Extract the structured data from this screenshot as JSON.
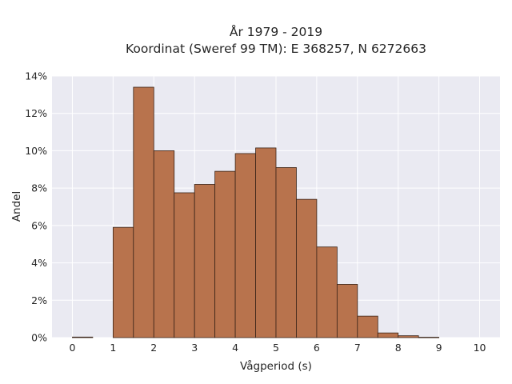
{
  "chart_data": {
    "type": "bar",
    "title_line1": "År 1979 - 2019",
    "title_line2": "Koordinat (Sweref 99 TM): E 368257, N 6272663",
    "xlabel": "Vågperiod (s)",
    "ylabel": "Andel",
    "xlim": [
      -0.5,
      10.5
    ],
    "ylim": [
      0,
      14
    ],
    "x_ticks": [
      0,
      1,
      2,
      3,
      4,
      5,
      6,
      7,
      8,
      9,
      10
    ],
    "y_ticks": [
      0,
      2,
      4,
      6,
      8,
      10,
      12,
      14
    ],
    "y_tick_labels": [
      "0%",
      "2%",
      "4%",
      "6%",
      "8%",
      "10%",
      "12%",
      "14%"
    ],
    "bin_width": 0.5,
    "bins": [
      {
        "x0": 0.0,
        "value": 0.03
      },
      {
        "x0": 0.5,
        "value": 0.0
      },
      {
        "x0": 1.0,
        "value": 5.9
      },
      {
        "x0": 1.5,
        "value": 13.4
      },
      {
        "x0": 2.0,
        "value": 10.0
      },
      {
        "x0": 2.5,
        "value": 7.75
      },
      {
        "x0": 3.0,
        "value": 8.2
      },
      {
        "x0": 3.5,
        "value": 8.9
      },
      {
        "x0": 4.0,
        "value": 9.85
      },
      {
        "x0": 4.5,
        "value": 10.15
      },
      {
        "x0": 5.0,
        "value": 9.1
      },
      {
        "x0": 5.5,
        "value": 7.4
      },
      {
        "x0": 6.0,
        "value": 4.85
      },
      {
        "x0": 6.5,
        "value": 2.85
      },
      {
        "x0": 7.0,
        "value": 1.15
      },
      {
        "x0": 7.5,
        "value": 0.25
      },
      {
        "x0": 8.0,
        "value": 0.1
      },
      {
        "x0": 8.5,
        "value": 0.02
      }
    ],
    "grid": true,
    "colors": {
      "background": "#eaeaf2",
      "bar_fill": "#b8734d",
      "bar_edge": "#3a2418",
      "grid": "#ffffff"
    }
  }
}
